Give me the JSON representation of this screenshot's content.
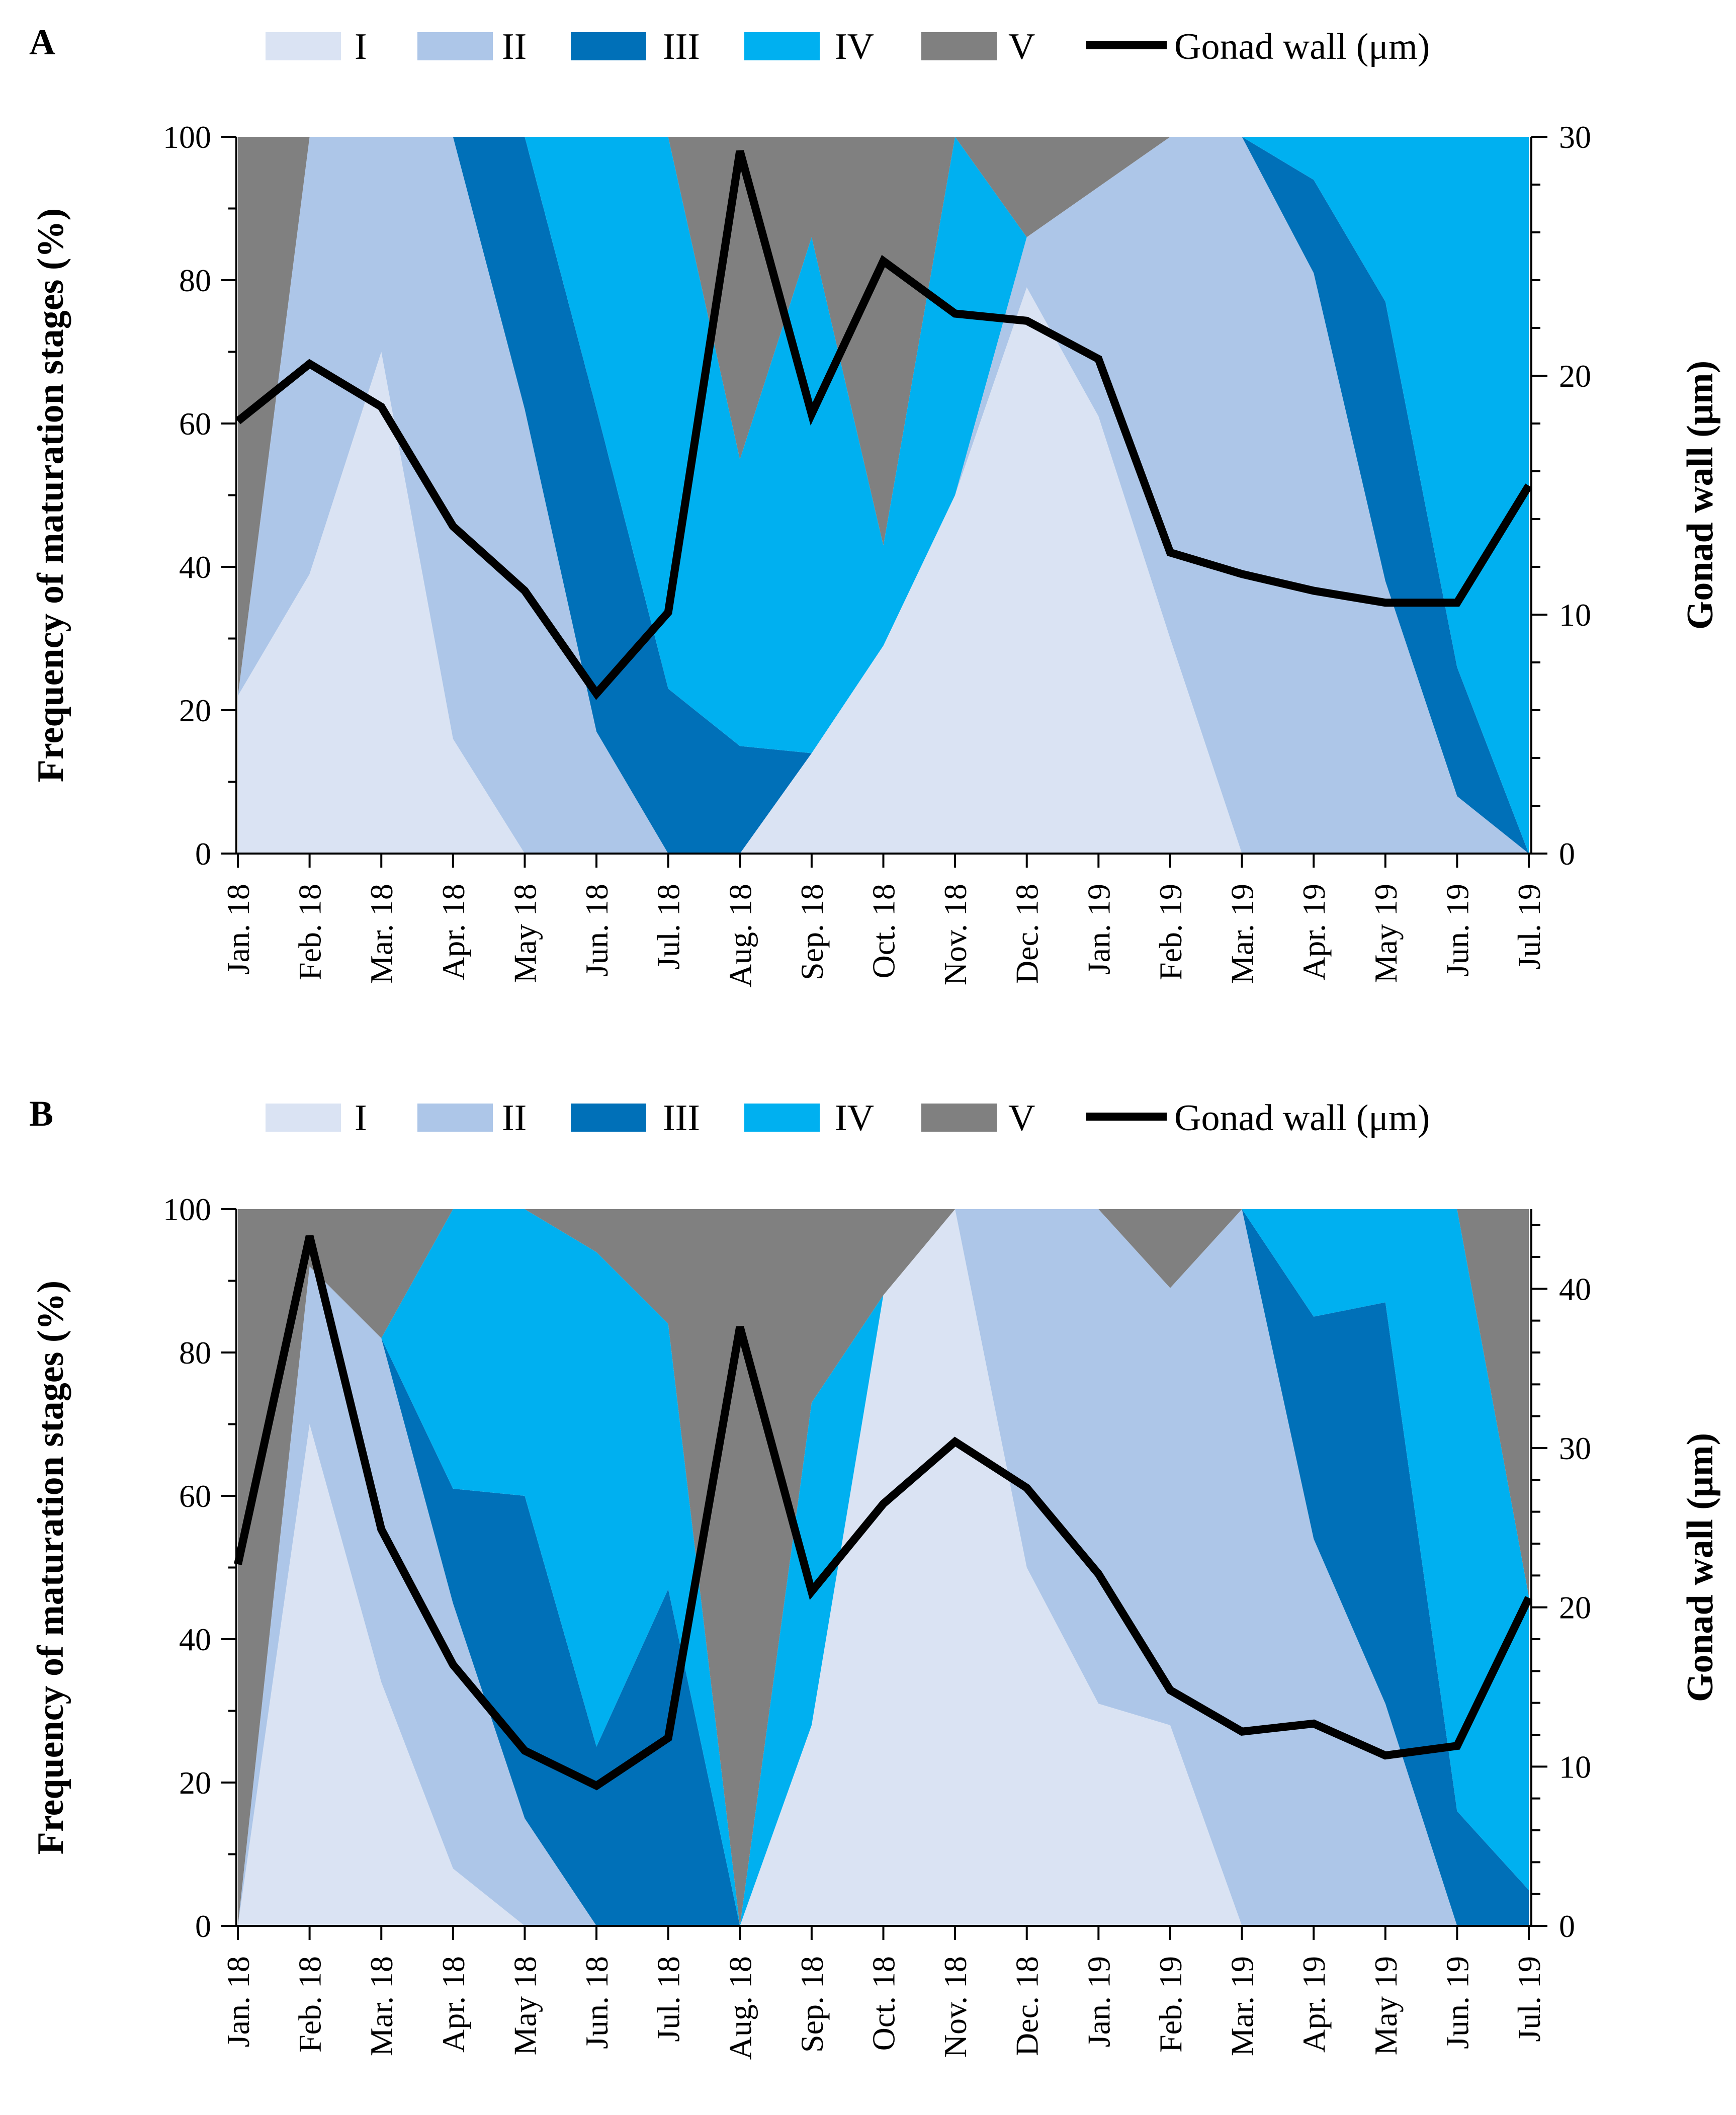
{
  "figure": {
    "panel_labels": [
      "A",
      "B"
    ]
  },
  "legend": {
    "items": [
      {
        "label": "I",
        "color": "#dae3f3"
      },
      {
        "label": "II",
        "color": "#adc6e8"
      },
      {
        "label": "III",
        "color": "#0070b8"
      },
      {
        "label": "IV",
        "color": "#00b0f0"
      },
      {
        "label": "V",
        "color": "#808080"
      }
    ],
    "line_label": "Gonad wall (μm)",
    "line_color": "#000000"
  },
  "chart_data": [
    {
      "panel": "A",
      "type": "area",
      "stacked": true,
      "categories": [
        "Jan. 18",
        "Feb. 18",
        "Mar. 18",
        "Apr. 18",
        "May 18",
        "Jun. 18",
        "Jul. 18",
        "Aug. 18",
        "Sep. 18",
        "Oct. 18",
        "Nov. 18",
        "Dec. 18",
        "Jan. 19",
        "Feb. 19",
        "Mar. 19",
        "Apr. 19",
        "May 19",
        "Jun. 19",
        "Jul. 19"
      ],
      "ylabel": "Frequency of maturation stages (%)",
      "ylim": [
        0,
        100
      ],
      "y_ticks": [
        0,
        20,
        40,
        60,
        80,
        100
      ],
      "y2label": "Gonad wall (μm)",
      "y2lim": [
        0,
        30
      ],
      "y2_ticks": [
        0,
        10,
        20,
        30
      ],
      "series": [
        {
          "name": "I",
          "values": [
            22,
            39,
            70,
            16,
            0,
            0,
            0,
            0,
            14,
            29,
            50,
            79,
            61,
            30,
            0,
            0,
            0,
            0,
            0
          ]
        },
        {
          "name": "II",
          "values": [
            0,
            61,
            30,
            84,
            62,
            17,
            0,
            0,
            0,
            0,
            0,
            7,
            32,
            70,
            100,
            81,
            38,
            8,
            0
          ]
        },
        {
          "name": "III",
          "values": [
            0,
            0,
            0,
            0,
            38,
            45,
            23,
            15,
            0,
            0,
            0,
            0,
            0,
            0,
            0,
            13,
            39,
            18,
            0
          ]
        },
        {
          "name": "IV",
          "values": [
            0,
            0,
            0,
            0,
            0,
            38,
            77,
            40,
            72,
            14,
            50,
            0,
            0,
            0,
            0,
            6,
            23,
            74,
            100
          ]
        },
        {
          "name": "V",
          "values": [
            78,
            0,
            0,
            0,
            0,
            0,
            0,
            45,
            14,
            57,
            0,
            14,
            7,
            0,
            0,
            0,
            0,
            0,
            0
          ]
        }
      ],
      "line": {
        "name": "Gonad wall (μm)",
        "values": [
          18.1,
          20.5,
          18.7,
          13.7,
          11.0,
          6.7,
          10.1,
          29.4,
          18.4,
          24.8,
          22.6,
          22.3,
          20.7,
          12.6,
          11.7,
          11.0,
          10.5,
          10.5,
          15.4
        ]
      }
    },
    {
      "panel": "B",
      "type": "area",
      "stacked": true,
      "categories": [
        "Jan. 18",
        "Feb. 18",
        "Mar. 18",
        "Apr. 18",
        "May 18",
        "Jun. 18",
        "Jul. 18",
        "Aug. 18",
        "Sep. 18",
        "Oct. 18",
        "Nov. 18",
        "Dec. 18",
        "Jan. 19",
        "Feb. 19",
        "Mar. 19",
        "Apr. 19",
        "May 19",
        "Jun. 19",
        "Jul. 19"
      ],
      "ylabel": "Frequency of maturation stages (%)",
      "ylim": [
        0,
        100
      ],
      "y_ticks": [
        0,
        20,
        40,
        60,
        80,
        100
      ],
      "y2label": "Gonad wall (μm)",
      "y2lim": [
        0,
        45
      ],
      "y2_ticks": [
        0,
        10,
        20,
        30,
        40
      ],
      "series": [
        {
          "name": "I",
          "values": [
            0,
            70,
            34,
            8,
            0,
            0,
            0,
            0,
            28,
            88,
            100,
            50,
            31,
            28,
            0,
            0,
            0,
            0,
            0
          ]
        },
        {
          "name": "II",
          "values": [
            0,
            22,
            48,
            37,
            15,
            0,
            0,
            0,
            0,
            0,
            0,
            50,
            69,
            61,
            100,
            54,
            31,
            0,
            0
          ]
        },
        {
          "name": "III",
          "values": [
            0,
            0,
            0,
            16,
            45,
            25,
            47,
            0,
            0,
            0,
            0,
            0,
            0,
            0,
            0,
            31,
            56,
            16,
            5
          ]
        },
        {
          "name": "IV",
          "values": [
            0,
            0,
            0,
            39,
            40,
            69,
            37,
            0,
            45,
            0,
            0,
            0,
            0,
            0,
            0,
            15,
            13,
            84,
            41
          ]
        },
        {
          "name": "V",
          "values": [
            100,
            8,
            18,
            0,
            0,
            6,
            16,
            100,
            27,
            12,
            0,
            0,
            0,
            11,
            0,
            0,
            0,
            0,
            54
          ]
        }
      ],
      "line": {
        "name": "Gonad wall (μm)",
        "values": [
          22.7,
          43.3,
          24.9,
          16.4,
          11.0,
          8.8,
          11.8,
          37.6,
          21.0,
          26.5,
          30.4,
          27.5,
          22.1,
          14.8,
          12.2,
          12.7,
          10.7,
          11.3,
          20.6
        ]
      }
    }
  ]
}
